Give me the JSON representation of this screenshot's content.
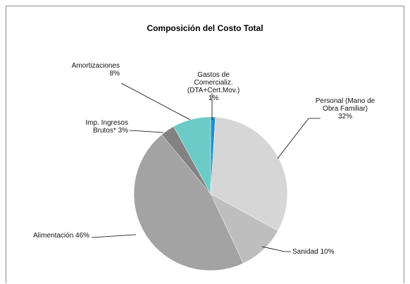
{
  "chart_data": {
    "type": "pie",
    "title": "Composición del Costo Total",
    "slices": [
      {
        "label_lines": [
          "Gastos de",
          "Comercializ.",
          "(DTA+Cert.Mov.)",
          "1%"
        ],
        "value": 1,
        "color": "#1e8fcf"
      },
      {
        "label_lines": [
          "Personal (Mano de",
          "Obra Familiar)",
          "32%"
        ],
        "value": 32,
        "color": "#d6d6d6"
      },
      {
        "label_lines": [
          "Sanidad 10%"
        ],
        "value": 10,
        "color": "#bebebe"
      },
      {
        "label_lines": [
          "Alimentación 46%"
        ],
        "value": 46,
        "color": "#a3a3a3"
      },
      {
        "label_lines": [
          "Imp. Ingresos",
          "Brutos* 3%"
        ],
        "value": 3,
        "color": "#828282"
      },
      {
        "label_lines": [
          "Amortizaciones",
          "8%"
        ],
        "value": 8,
        "color": "#6ccbc6"
      }
    ]
  }
}
